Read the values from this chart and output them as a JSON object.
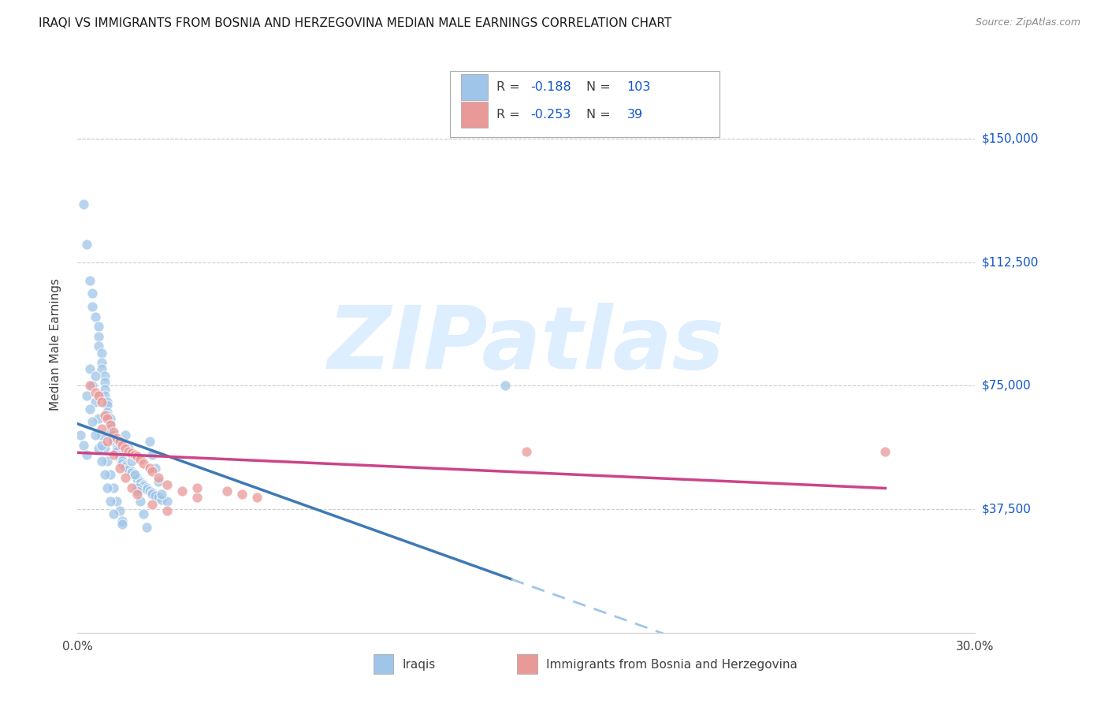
{
  "title": "IRAQI VS IMMIGRANTS FROM BOSNIA AND HERZEGOVINA MEDIAN MALE EARNINGS CORRELATION CHART",
  "source": "Source: ZipAtlas.com",
  "ylabel": "Median Male Earnings",
  "xlim": [
    0.0,
    0.3
  ],
  "ylim": [
    0,
    175000
  ],
  "ytick_vals": [
    37500,
    75000,
    112500,
    150000
  ],
  "ytick_labels": [
    "$37,500",
    "$75,000",
    "$112,500",
    "$150,000"
  ],
  "xtick_vals": [
    0.0,
    0.05,
    0.1,
    0.15,
    0.2,
    0.25,
    0.3
  ],
  "xtick_labels": [
    "0.0%",
    "",
    "",
    "",
    "",
    "",
    "30.0%"
  ],
  "legend_R1": "-0.188",
  "legend_N1": "103",
  "legend_R2": "-0.253",
  "legend_N2": "39",
  "color_iraqi": "#9fc5e8",
  "color_bosnia": "#ea9999",
  "color_trendline_iraqi": "#3d7ab5",
  "color_trendline_bosnia": "#cc4488",
  "color_trendline_dashed": "#9fc5e8",
  "color_right_labels": "#1155cc",
  "color_dark_text": "#404040",
  "background_color": "#ffffff",
  "watermark_text": "ZIPatlas",
  "watermark_color": "#ddeeff",
  "grid_color": "#cccccc",
  "iraqi_pts_x": [
    0.002,
    0.003,
    0.004,
    0.005,
    0.005,
    0.006,
    0.007,
    0.007,
    0.007,
    0.008,
    0.008,
    0.008,
    0.009,
    0.009,
    0.009,
    0.009,
    0.01,
    0.01,
    0.01,
    0.01,
    0.011,
    0.011,
    0.011,
    0.011,
    0.012,
    0.012,
    0.012,
    0.013,
    0.013,
    0.013,
    0.013,
    0.014,
    0.014,
    0.014,
    0.015,
    0.015,
    0.015,
    0.016,
    0.016,
    0.017,
    0.017,
    0.018,
    0.018,
    0.019,
    0.019,
    0.02,
    0.02,
    0.021,
    0.021,
    0.022,
    0.022,
    0.023,
    0.023,
    0.024,
    0.025,
    0.025,
    0.026,
    0.027,
    0.028,
    0.03,
    0.001,
    0.002,
    0.003,
    0.004,
    0.005,
    0.006,
    0.007,
    0.008,
    0.009,
    0.01,
    0.011,
    0.012,
    0.013,
    0.014,
    0.015,
    0.016,
    0.017,
    0.018,
    0.019,
    0.02,
    0.021,
    0.022,
    0.023,
    0.024,
    0.025,
    0.026,
    0.027,
    0.028,
    0.003,
    0.004,
    0.005,
    0.006,
    0.007,
    0.008,
    0.009,
    0.01,
    0.011,
    0.012,
    0.015,
    0.02,
    0.006,
    0.008,
    0.143
  ],
  "iraqi_pts_y": [
    130000,
    118000,
    107000,
    103000,
    99000,
    96000,
    93000,
    90000,
    87000,
    85000,
    82000,
    80000,
    78000,
    76000,
    74000,
    72000,
    70000,
    69000,
    67000,
    66000,
    65000,
    63000,
    62000,
    61000,
    60000,
    59000,
    58000,
    57000,
    56000,
    55500,
    55000,
    54000,
    53500,
    53000,
    52500,
    52000,
    51500,
    51000,
    50500,
    50000,
    49500,
    49000,
    48500,
    48000,
    47500,
    47000,
    46500,
    46000,
    45500,
    45000,
    44500,
    44000,
    43500,
    43000,
    42500,
    42000,
    41500,
    41000,
    40500,
    40000,
    60000,
    57000,
    54000,
    80000,
    75000,
    70000,
    65000,
    60000,
    56000,
    52000,
    48000,
    44000,
    40000,
    37000,
    34000,
    60000,
    56000,
    52000,
    48000,
    44000,
    40000,
    36000,
    32000,
    58000,
    54000,
    50000,
    46000,
    42000,
    72000,
    68000,
    64000,
    60000,
    56000,
    52000,
    48000,
    44000,
    40000,
    36000,
    33000,
    43000,
    78000,
    57000,
    75000
  ],
  "bosnia_pts_x": [
    0.004,
    0.006,
    0.007,
    0.008,
    0.009,
    0.01,
    0.011,
    0.012,
    0.013,
    0.014,
    0.015,
    0.016,
    0.017,
    0.018,
    0.019,
    0.02,
    0.021,
    0.022,
    0.024,
    0.025,
    0.027,
    0.03,
    0.035,
    0.04,
    0.008,
    0.01,
    0.012,
    0.014,
    0.016,
    0.018,
    0.02,
    0.025,
    0.03,
    0.04,
    0.05,
    0.06,
    0.15,
    0.27,
    0.055
  ],
  "bosnia_pts_y": [
    75000,
    73000,
    72000,
    70000,
    66000,
    65000,
    63000,
    61000,
    59000,
    58000,
    57000,
    56000,
    55000,
    54500,
    54000,
    53500,
    52500,
    51500,
    50000,
    49000,
    47000,
    45000,
    43000,
    41000,
    62000,
    58000,
    54000,
    50000,
    47000,
    44000,
    42000,
    39000,
    37000,
    44000,
    43000,
    41000,
    55000,
    55000,
    42000
  ]
}
